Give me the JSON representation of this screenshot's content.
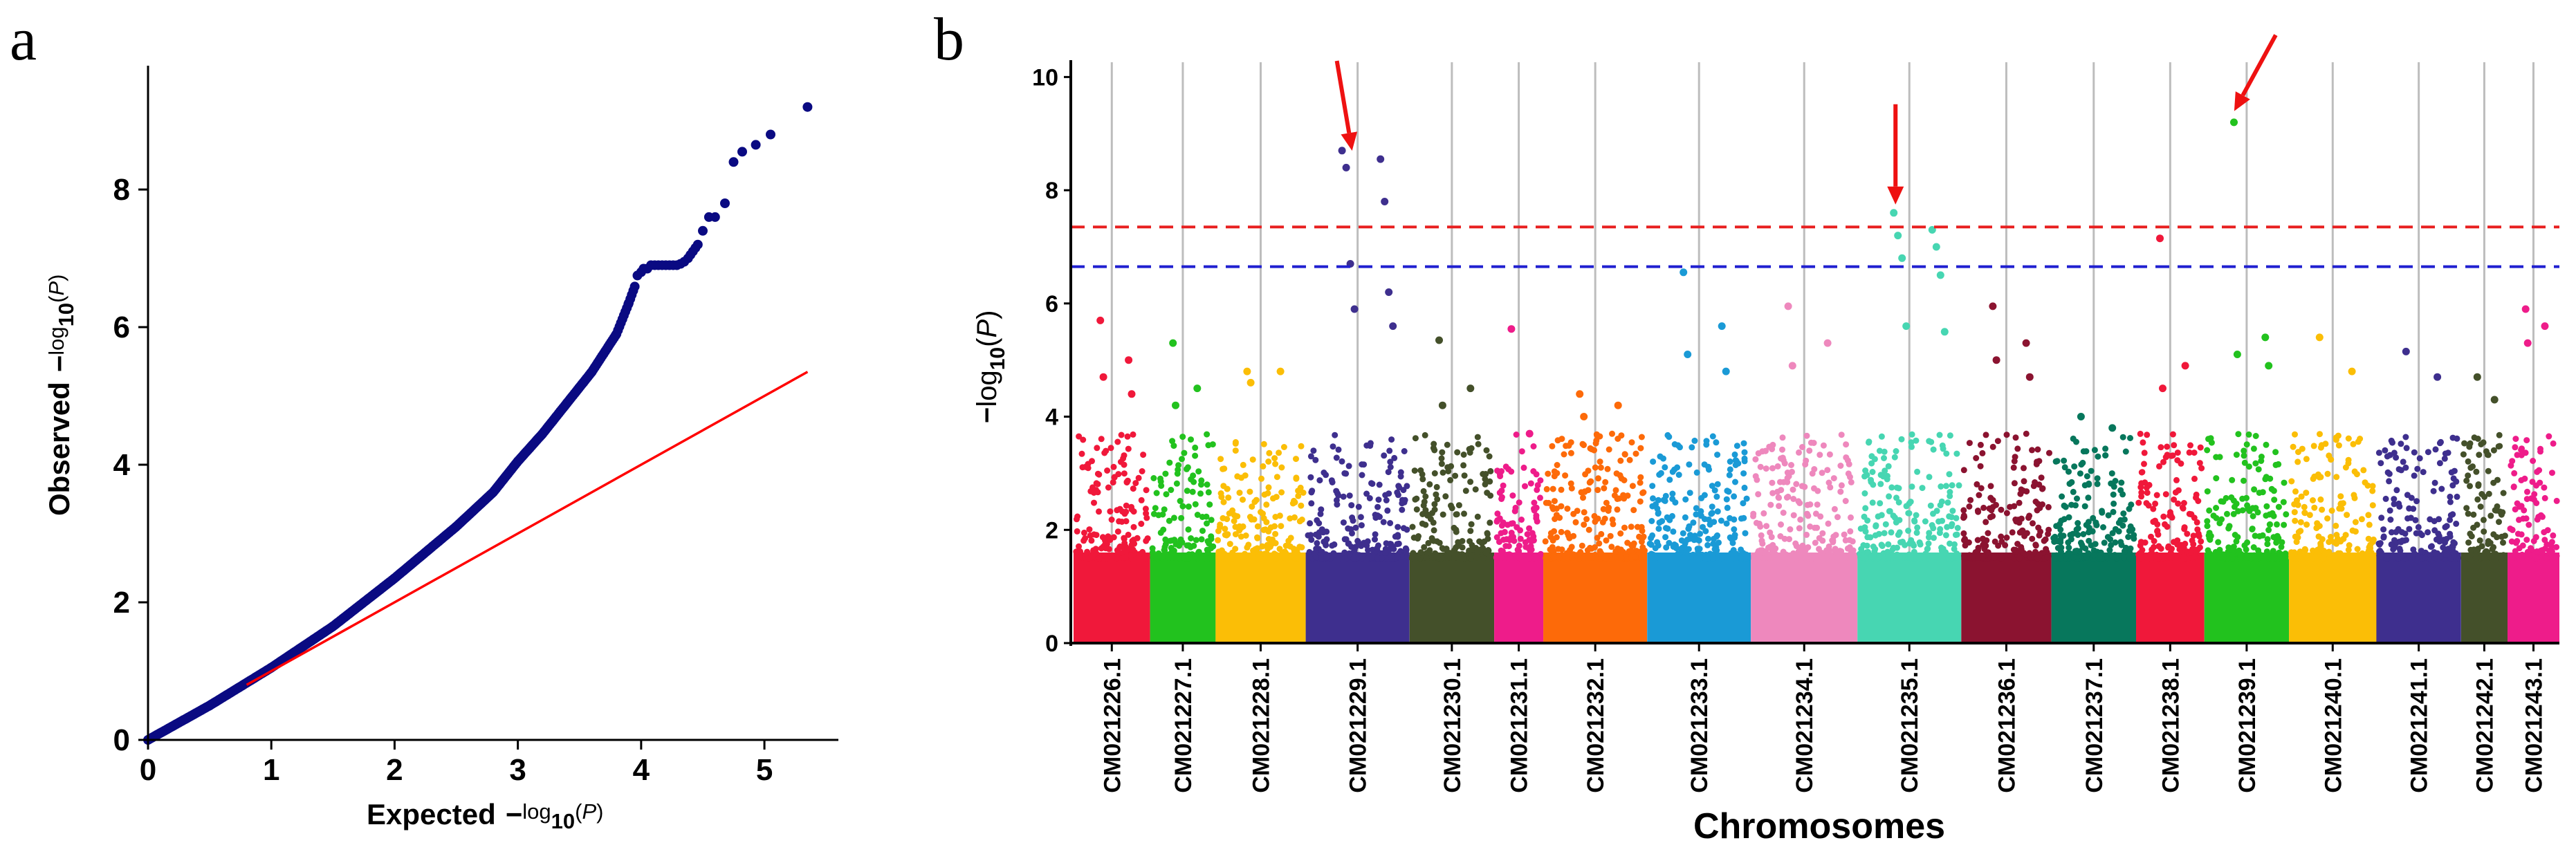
{
  "panels": {
    "a": "a",
    "b": "b"
  },
  "chart_data": [
    {
      "type": "scatter",
      "panel": "a",
      "xlabel_main": "Expected",
      "ylabel_main": "Observed",
      "axis_expr": {
        "minus": "−",
        "log": "log",
        "sub": "10",
        "lp": "(",
        "p": "P",
        "rp": ")"
      },
      "xlim": [
        0,
        5.6
      ],
      "ylim": [
        0,
        9.8
      ],
      "xticks": [
        0,
        1,
        2,
        3,
        4,
        5
      ],
      "yticks": [
        0,
        2,
        4,
        6,
        8
      ],
      "grid": false,
      "point_color": "#0a0a82",
      "line_color": "#ff0000",
      "reference_line": {
        "x": [
          0.8,
          5.35
        ],
        "y": [
          0.8,
          5.35
        ]
      },
      "qq_curve": {
        "x": [
          0,
          0.5,
          1,
          1.5,
          2,
          2.5,
          2.8,
          3,
          3.2,
          3.4,
          3.6,
          3.8,
          3.9,
          3.95
        ],
        "y": [
          0,
          0.5,
          1.05,
          1.65,
          2.35,
          3.1,
          3.6,
          4.05,
          4.45,
          4.9,
          5.35,
          5.9,
          6.35,
          6.6
        ]
      },
      "top_points": {
        "x": [
          3.97,
          4.0,
          4.02,
          4.05,
          4.08,
          4.11,
          4.14,
          4.17,
          4.2,
          4.23,
          4.26,
          4.29,
          4.32,
          4.35,
          4.38,
          4.4,
          4.42,
          4.44,
          4.46,
          4.5,
          4.55,
          4.6,
          4.68,
          4.75,
          4.82,
          4.93,
          5.05,
          5.35
        ],
        "y": [
          6.75,
          6.8,
          6.85,
          6.85,
          6.9,
          6.9,
          6.9,
          6.9,
          6.9,
          6.9,
          6.9,
          6.9,
          6.92,
          6.95,
          7.0,
          7.05,
          7.1,
          7.15,
          7.2,
          7.4,
          7.6,
          7.6,
          7.8,
          8.4,
          8.55,
          8.65,
          8.8,
          9.2
        ]
      }
    },
    {
      "type": "scatter",
      "subtype": "manhattan",
      "panel": "b",
      "xlabel": "Chromosomes",
      "ylabel_expr": {
        "minus": "−",
        "log": "log",
        "sub": "10",
        "lp": "(",
        "p": "P",
        "rp": ")"
      },
      "ylim": [
        0,
        10.2
      ],
      "yticks": [
        0,
        2,
        4,
        6,
        8,
        10
      ],
      "grid": "vertical separators",
      "thresholds": [
        {
          "value": 7.35,
          "color": "#e82020",
          "style": "dashed"
        },
        {
          "value": 6.65,
          "color": "#2020d0",
          "style": "dashed"
        }
      ],
      "chromosomes": [
        {
          "name": "CM021226.1",
          "color": "#f0183a",
          "peaks": [
            5.7,
            5.0,
            4.7,
            4.4
          ]
        },
        {
          "name": "CM021227.1",
          "color": "#22c21e",
          "peaks": [
            5.3,
            4.5,
            4.2
          ]
        },
        {
          "name": "CM021228.1",
          "color": "#fbbe06",
          "peaks": [
            4.8,
            4.8,
            4.6
          ]
        },
        {
          "name": "CM021229.1",
          "color": "#3e2f8e",
          "peaks": [
            8.7,
            8.55,
            8.4,
            7.8,
            6.7,
            6.2,
            5.9,
            5.6
          ]
        },
        {
          "name": "CM021230.1",
          "color": "#44502a",
          "peaks": [
            5.35,
            4.5,
            4.2
          ]
        },
        {
          "name": "CM021231.1",
          "color": "#ee1c8a",
          "peaks": [
            5.55,
            3.7
          ]
        },
        {
          "name": "CM021232.1",
          "color": "#fd6a09",
          "peaks": [
            4.4,
            4.2,
            4.0
          ]
        },
        {
          "name": "CM021233.1",
          "color": "#1a9ad6",
          "peaks": [
            6.55,
            5.6,
            5.1,
            4.8
          ]
        },
        {
          "name": "CM021234.1",
          "color": "#ee88bd",
          "peaks": [
            5.95,
            5.3,
            4.9
          ]
        },
        {
          "name": "CM021235.1",
          "color": "#47d6b2",
          "peaks": [
            7.6,
            7.3,
            7.2,
            7.0,
            6.8,
            6.5,
            5.6,
            5.5
          ]
        },
        {
          "name": "CM021236.1",
          "color": "#8b1330",
          "peaks": [
            5.95,
            5.3,
            5.0,
            4.7
          ]
        },
        {
          "name": "CM021237.1",
          "color": "#07775c",
          "peaks": [
            4.0,
            3.8
          ]
        },
        {
          "name": "CM021238.1",
          "color": "#f0183a",
          "peaks": [
            7.15,
            4.9,
            4.5
          ]
        },
        {
          "name": "CM021239.1",
          "color": "#22c21e",
          "peaks": [
            9.2,
            5.4,
            5.1,
            4.9
          ]
        },
        {
          "name": "CM021240.1",
          "color": "#fbbe06",
          "peaks": [
            5.4,
            4.8
          ]
        },
        {
          "name": "CM021241.1",
          "color": "#3e2f8e",
          "peaks": [
            5.15,
            4.7
          ]
        },
        {
          "name": "CM021242.1",
          "color": "#44502a",
          "peaks": [
            4.7,
            4.3
          ]
        },
        {
          "name": "CM021243.1",
          "color": "#ee1c8a",
          "peaks": [
            5.9,
            5.6,
            5.3
          ]
        }
      ],
      "arrows": [
        {
          "chromosome": "CM021229.1",
          "target_y": 8.6
        },
        {
          "chromosome": "CM021235.1",
          "target_y": 7.65
        },
        {
          "chromosome": "CM021239.1",
          "target_y": 9.3
        }
      ]
    }
  ]
}
